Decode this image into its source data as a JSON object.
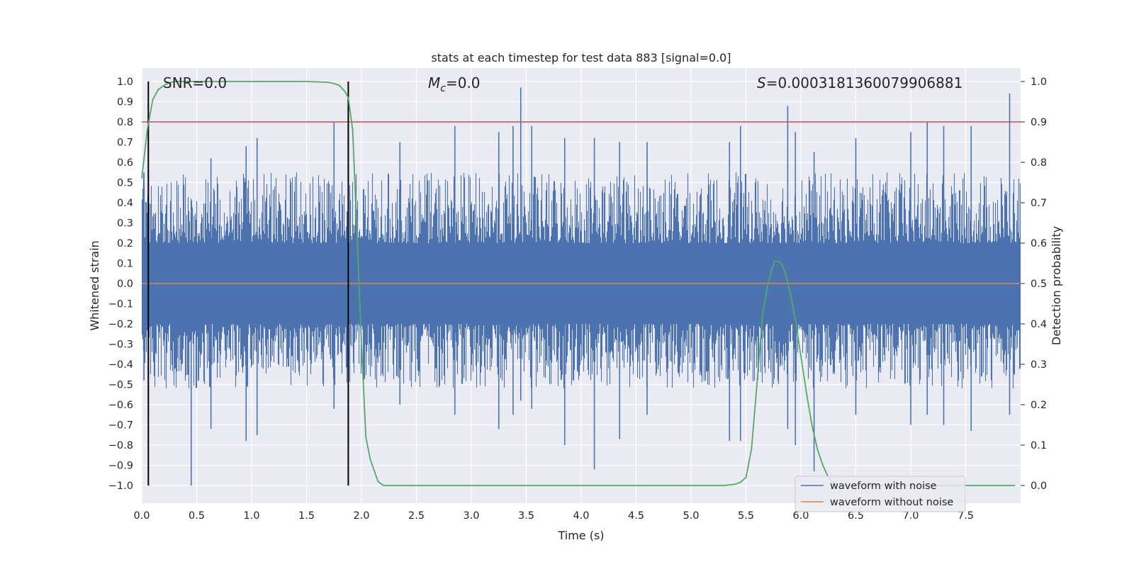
{
  "chart_data": {
    "type": "line",
    "title": "stats at each timestep for test data 883 [signal=0.0]",
    "xlabel": "Time (s)",
    "ylabel": "Whitened strain",
    "y2label": "Detection probability",
    "xlim": [
      0.0,
      8.0
    ],
    "ylim": [
      -1.0,
      1.0
    ],
    "y2lim": [
      0.0,
      1.0
    ],
    "xticks": [
      "0.0",
      "0.5",
      "1.0",
      "1.5",
      "2.0",
      "2.5",
      "3.0",
      "3.5",
      "4.0",
      "4.5",
      "5.0",
      "5.5",
      "6.0",
      "6.5",
      "7.0",
      "7.5"
    ],
    "yticks": [
      "1.0",
      "0.9",
      "0.8",
      "0.7",
      "0.6",
      "0.5",
      "0.4",
      "0.3",
      "0.2",
      "0.1",
      "0.0",
      "-0.1",
      "-0.2",
      "-0.3",
      "-0.4",
      "-0.5",
      "-0.6",
      "-0.7",
      "-0.8",
      "-0.9",
      "-1.0"
    ],
    "y2ticks": [
      "1.0",
      "0.9",
      "0.8",
      "0.7",
      "0.6",
      "0.5",
      "0.4",
      "0.3",
      "0.2",
      "0.1",
      "0.0"
    ],
    "annotations": {
      "snr": "SNR=0.0",
      "mc_symbol": "M",
      "mc_sub": "c",
      "mc_value": "=0.0",
      "s_symbol": "S",
      "s_value": "=0.0003181360079906881"
    },
    "threshold": 0.9,
    "vlines": [
      0.06,
      1.88
    ],
    "series": [
      {
        "name": "waveform with noise",
        "color": "#4c72b0",
        "peaks": [
          [
            0.02,
            0.55,
            -0.48
          ],
          [
            0.06,
            0.58,
            -0.65
          ],
          [
            0.45,
            0.35,
            -1.0
          ],
          [
            0.63,
            0.62,
            -0.72
          ],
          [
            0.95,
            0.68,
            -0.78
          ],
          [
            1.05,
            0.72,
            -0.75
          ],
          [
            1.75,
            0.8,
            -0.62
          ],
          [
            1.88,
            0.82,
            -0.82
          ],
          [
            2.35,
            0.7,
            -0.6
          ],
          [
            2.85,
            0.78,
            -0.65
          ],
          [
            3.25,
            0.75,
            -0.72
          ],
          [
            3.38,
            0.78,
            -0.65
          ],
          [
            3.45,
            0.97,
            -0.58
          ],
          [
            3.55,
            0.78,
            -0.62
          ],
          [
            3.85,
            0.72,
            -0.8
          ],
          [
            4.12,
            0.72,
            -0.92
          ],
          [
            4.35,
            0.7,
            -0.77
          ],
          [
            4.6,
            0.7,
            -0.65
          ],
          [
            5.35,
            0.7,
            -0.78
          ],
          [
            5.45,
            0.78,
            -0.78
          ],
          [
            5.88,
            0.88,
            -0.72
          ],
          [
            5.95,
            0.75,
            -0.8
          ],
          [
            6.12,
            0.65,
            -0.93
          ],
          [
            6.5,
            0.72,
            -0.65
          ],
          [
            7.0,
            0.75,
            -0.7
          ],
          [
            7.15,
            0.8,
            -0.65
          ],
          [
            7.3,
            0.78,
            -0.7
          ],
          [
            7.55,
            0.78,
            -0.73
          ],
          [
            7.9,
            0.94,
            -0.65
          ]
        ]
      },
      {
        "name": "waveform without noise",
        "color": "#dd8452",
        "x": [
          0.0,
          8.0
        ],
        "y": [
          0.0,
          0.0
        ]
      },
      {
        "name": "detection probability",
        "color": "#55a868",
        "axis": "right",
        "x": [
          0.0,
          0.05,
          0.1,
          0.15,
          0.2,
          0.25,
          0.3,
          0.35,
          0.4,
          0.5,
          1.0,
          1.5,
          1.7,
          1.75,
          1.8,
          1.85,
          1.88,
          1.92,
          1.96,
          2.0,
          2.04,
          2.08,
          2.15,
          2.2,
          2.3,
          3.0,
          4.0,
          5.0,
          5.3,
          5.4,
          5.45,
          5.5,
          5.55,
          5.6,
          5.65,
          5.7,
          5.73,
          5.76,
          5.8,
          5.83,
          5.86,
          5.9,
          5.95,
          6.0,
          6.05,
          6.1,
          6.15,
          6.2,
          6.25,
          6.3,
          6.35,
          6.4,
          7.0,
          7.5,
          7.95
        ],
        "y": [
          0.76,
          0.88,
          0.955,
          0.98,
          0.99,
          0.997,
          1.0,
          1.0,
          1.0,
          1.0,
          1.0,
          1.0,
          0.998,
          0.995,
          0.99,
          0.975,
          0.96,
          0.88,
          0.62,
          0.35,
          0.12,
          0.065,
          0.01,
          0.0,
          0.0,
          0.0,
          0.0,
          0.0,
          0.0,
          0.003,
          0.008,
          0.02,
          0.09,
          0.25,
          0.42,
          0.5,
          0.53,
          0.555,
          0.555,
          0.545,
          0.525,
          0.48,
          0.41,
          0.32,
          0.23,
          0.15,
          0.09,
          0.05,
          0.02,
          0.005,
          0.0,
          0.0,
          0.0,
          0.0,
          0.0
        ]
      }
    ],
    "legend": [
      "waveform with noise",
      "waveform without noise"
    ],
    "legend_position": "bottom-right",
    "colors": {
      "background": "#eaeaf2",
      "grid": "#ffffff",
      "threshold": "#c44e52",
      "vline": "#000000"
    }
  }
}
